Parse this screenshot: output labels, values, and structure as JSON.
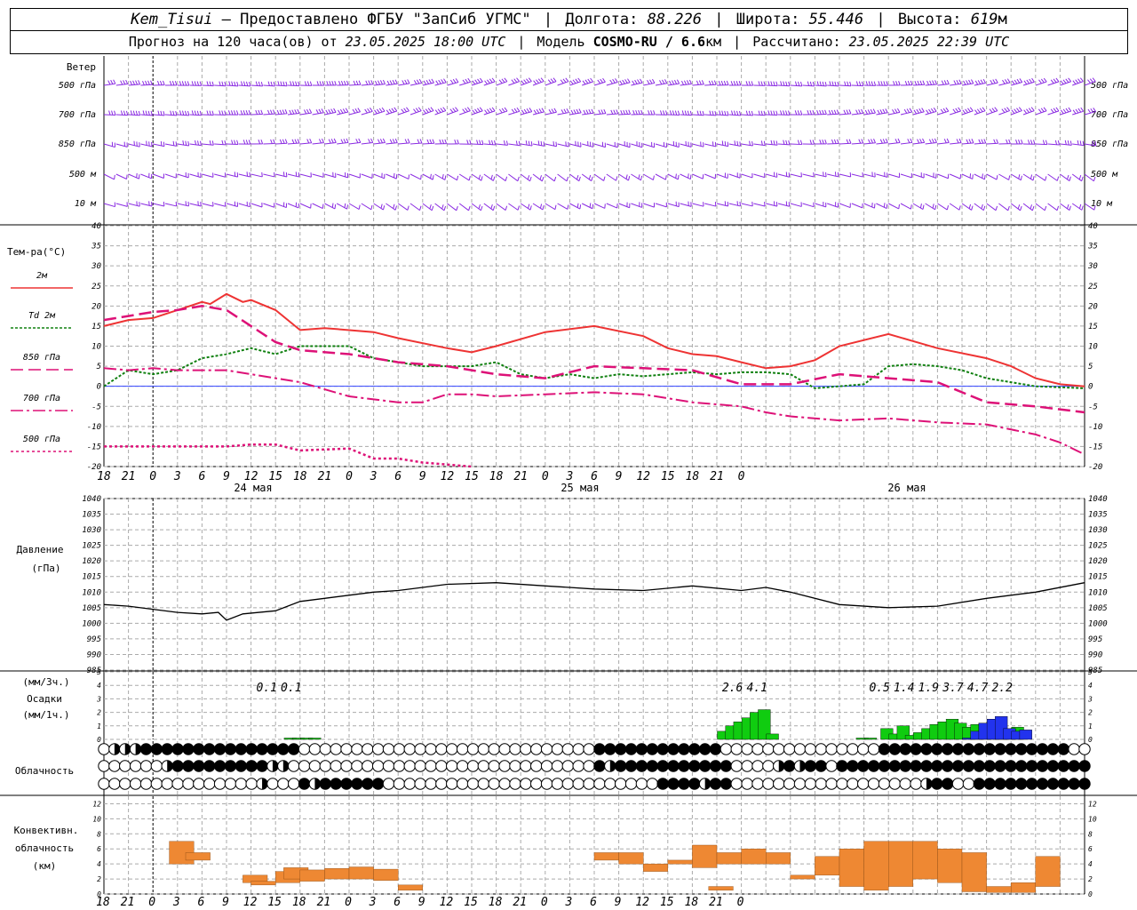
{
  "header": {
    "station": "Kem_Tisui",
    "provider": "— Предоставлено ФГБУ \"ЗапСиб УГМС\"",
    "lon_label": "Долгота:",
    "lon_value": "88.226",
    "lat_label": "Широта:",
    "lat_value": "55.446",
    "alt_label": "Высота:",
    "alt_value": "619",
    "alt_unit": "м",
    "forecast_prefix": "Прогноз на 120 часа(ов) от",
    "forecast_from": "23.05.2025 18:00 UTC",
    "model_label": "Модель",
    "model_name": "COSMO-RU / 6.6",
    "model_unit": "км",
    "computed_label": "Рассчитано:",
    "computed_at": "23.05.2025 22:39 UTC"
  },
  "labels": {
    "wind": "Ветер",
    "temp": "Тем-ра(°С)",
    "pressure": "Давление",
    "pressure_unit": "(гПа)",
    "precip_unit3": "(мм/3ч.)",
    "precip": "Осадки",
    "precip_unit1": "(мм/1ч.)",
    "cloud": "Облачность",
    "conv1": "Конвективн.",
    "conv2": "облачность",
    "conv3": "(км)",
    "days": [
      "24 мая",
      "25 мая",
      "26 мая"
    ]
  },
  "colors": {
    "t2m": "#ee3333",
    "td2m": "#108010",
    "t850": "#dd1177",
    "wind": "#8a2be2",
    "precip_rain": "#10cc10",
    "precip_snow": "#2233ee",
    "convective": "#ee8833",
    "zero_line": "#3344ff"
  },
  "chart_data": [
    {
      "type": "wind_barbs",
      "levels": [
        "500 гПа",
        "700 гПа",
        "850 гПа",
        "500 м",
        "10 м"
      ]
    },
    {
      "type": "line",
      "x_ticks": [
        "18",
        "21",
        "0",
        "3",
        "6",
        "9",
        "12",
        "15",
        "18",
        "21",
        "0",
        "3",
        "6",
        "9",
        "12",
        "15",
        "18",
        "21",
        "0",
        "3",
        "6",
        "9",
        "12",
        "15",
        "18",
        "21",
        "0"
      ],
      "ylim": [
        -20,
        40
      ],
      "y_ticks": [
        -20,
        -15,
        -10,
        -5,
        0,
        5,
        10,
        15,
        20,
        25,
        30,
        35,
        40
      ],
      "series": [
        {
          "name": "2м",
          "values": [
            [
              0,
              15
            ],
            [
              3,
              16.5
            ],
            [
              6,
              17
            ],
            [
              9,
              19
            ],
            [
              12,
              21
            ],
            [
              13,
              20.5
            ],
            [
              15,
              23
            ],
            [
              17,
              21
            ],
            [
              18,
              21.5
            ],
            [
              21,
              19
            ],
            [
              24,
              14
            ],
            [
              27,
              14.5
            ],
            [
              33,
              13.5
            ],
            [
              36,
              12
            ],
            [
              42,
              9.5
            ],
            [
              45,
              8.5
            ],
            [
              48,
              10
            ],
            [
              54,
              13.5
            ],
            [
              60,
              15
            ],
            [
              66,
              12.5
            ],
            [
              69,
              9.5
            ],
            [
              72,
              8
            ],
            [
              75,
              7.5
            ],
            [
              78,
              6
            ],
            [
              81,
              4.5
            ],
            [
              84,
              5
            ],
            [
              87,
              6.5
            ],
            [
              90,
              10
            ],
            [
              96,
              13
            ],
            [
              102,
              9.5
            ],
            [
              108,
              7
            ],
            [
              111,
              5
            ],
            [
              114,
              2
            ],
            [
              117,
              0.5
            ],
            [
              120,
              0
            ]
          ]
        },
        {
          "name": "Td 2м",
          "values": [
            [
              0,
              0
            ],
            [
              3,
              4
            ],
            [
              6,
              3
            ],
            [
              9,
              4
            ],
            [
              12,
              7
            ],
            [
              15,
              8
            ],
            [
              18,
              9.5
            ],
            [
              21,
              8
            ],
            [
              24,
              10
            ],
            [
              30,
              10
            ],
            [
              33,
              7
            ],
            [
              39,
              5
            ],
            [
              45,
              5
            ],
            [
              48,
              6
            ],
            [
              51,
              3
            ],
            [
              54,
              2
            ],
            [
              57,
              3
            ],
            [
              60,
              2
            ],
            [
              63,
              3
            ],
            [
              66,
              2.5
            ],
            [
              69,
              3
            ],
            [
              72,
              3.5
            ],
            [
              75,
              3
            ],
            [
              78,
              3.5
            ],
            [
              81,
              3.5
            ],
            [
              84,
              3
            ],
            [
              87,
              -0.5
            ],
            [
              93,
              0.5
            ],
            [
              96,
              5
            ],
            [
              99,
              5.5
            ],
            [
              102,
              5
            ],
            [
              105,
              4
            ],
            [
              108,
              2
            ],
            [
              111,
              1
            ],
            [
              114,
              0
            ],
            [
              120,
              -0.5
            ]
          ]
        },
        {
          "name": "850 гПа",
          "values": [
            [
              0,
              16.5
            ],
            [
              3,
              17.5
            ],
            [
              6,
              18.5
            ],
            [
              9,
              19
            ],
            [
              12,
              20
            ],
            [
              15,
              19
            ],
            [
              18,
              15
            ],
            [
              21,
              11
            ],
            [
              24,
              9
            ],
            [
              30,
              8
            ],
            [
              36,
              6
            ],
            [
              42,
              5
            ],
            [
              48,
              3
            ],
            [
              54,
              2
            ],
            [
              60,
              5
            ],
            [
              66,
              4.5
            ],
            [
              72,
              4
            ],
            [
              78,
              0.5
            ],
            [
              84,
              0.5
            ],
            [
              90,
              3
            ],
            [
              96,
              2
            ],
            [
              102,
              1
            ],
            [
              108,
              -4
            ],
            [
              114,
              -5
            ],
            [
              120,
              -6.5
            ]
          ]
        },
        {
          "name": "700 гПа",
          "values": [
            [
              0,
              4.5
            ],
            [
              3,
              4
            ],
            [
              6,
              4.5
            ],
            [
              9,
              4
            ],
            [
              12,
              4
            ],
            [
              15,
              4
            ],
            [
              18,
              3
            ],
            [
              21,
              2
            ],
            [
              24,
              1
            ],
            [
              30,
              -2.5
            ],
            [
              36,
              -4
            ],
            [
              39,
              -4
            ],
            [
              42,
              -2
            ],
            [
              45,
              -2
            ],
            [
              48,
              -2.5
            ],
            [
              54,
              -2
            ],
            [
              60,
              -1.5
            ],
            [
              66,
              -2
            ],
            [
              69,
              -3
            ],
            [
              72,
              -4
            ],
            [
              78,
              -5
            ],
            [
              81,
              -6.5
            ],
            [
              84,
              -7.5
            ],
            [
              90,
              -8.5
            ],
            [
              96,
              -8
            ],
            [
              102,
              -9
            ],
            [
              108,
              -9.5
            ],
            [
              114,
              -12
            ],
            [
              117,
              -14
            ],
            [
              120,
              -17
            ]
          ]
        },
        {
          "name": "500 гПа",
          "values": [
            [
              0,
              -15
            ],
            [
              3,
              -15
            ],
            [
              6,
              -15
            ],
            [
              9,
              -15
            ],
            [
              12,
              -15
            ],
            [
              15,
              -15
            ],
            [
              18,
              -14.5
            ],
            [
              21,
              -14.5
            ],
            [
              24,
              -16
            ],
            [
              30,
              -15.5
            ],
            [
              33,
              -18
            ],
            [
              36,
              -18
            ],
            [
              39,
              -19
            ],
            [
              42,
              -19.5
            ],
            [
              45,
              -20
            ]
          ]
        }
      ]
    },
    {
      "type": "line",
      "name": "Давление",
      "ylim": [
        985,
        1040
      ],
      "y_ticks": [
        985,
        990,
        995,
        1000,
        1005,
        1010,
        1015,
        1020,
        1025,
        1030,
        1035,
        1040
      ],
      "values": [
        [
          0,
          1006
        ],
        [
          3,
          1005.5
        ],
        [
          6,
          1004.5
        ],
        [
          9,
          1003.5
        ],
        [
          12,
          1003
        ],
        [
          14,
          1003.5
        ],
        [
          15,
          1001
        ],
        [
          17,
          1003
        ],
        [
          21,
          1004
        ],
        [
          24,
          1007
        ],
        [
          27,
          1008
        ],
        [
          33,
          1010
        ],
        [
          36,
          1010.5
        ],
        [
          42,
          1012.5
        ],
        [
          48,
          1013
        ],
        [
          54,
          1012
        ],
        [
          60,
          1011
        ],
        [
          66,
          1010.5
        ],
        [
          72,
          1012
        ],
        [
          78,
          1010.5
        ],
        [
          81,
          1011.5
        ],
        [
          84,
          1010
        ],
        [
          90,
          1006
        ],
        [
          96,
          1005
        ],
        [
          102,
          1005.5
        ],
        [
          108,
          1008
        ],
        [
          114,
          1010
        ],
        [
          120,
          1013
        ]
      ]
    },
    {
      "type": "bar",
      "name": "Осадки",
      "ylim": [
        0,
        5
      ],
      "totals_3h": [
        {
          "t": 21,
          "v": "0.1"
        },
        {
          "t": 24,
          "v": "0.1"
        },
        {
          "t": 78,
          "v": "2.6"
        },
        {
          "t": 81,
          "v": "4.1"
        },
        {
          "t": 96,
          "v": "0.5"
        },
        {
          "t": 99,
          "v": "1.4"
        },
        {
          "t": 102,
          "v": "1.9"
        },
        {
          "t": 105,
          "v": "3.7"
        },
        {
          "t": 108,
          "v": "4.7"
        },
        {
          "t": 111,
          "v": "2.2"
        }
      ],
      "rain": [
        [
          22,
          0.1
        ],
        [
          23,
          0.1
        ],
        [
          24,
          0.1
        ],
        [
          25,
          0.1
        ],
        [
          75,
          0.6
        ],
        [
          76,
          1
        ],
        [
          77,
          1.3
        ],
        [
          78,
          1.6
        ],
        [
          79,
          2
        ],
        [
          80,
          2.2
        ],
        [
          81,
          0.4
        ],
        [
          92,
          0.1
        ],
        [
          93,
          0.1
        ],
        [
          95,
          0.8
        ],
        [
          96,
          0.4
        ],
        [
          97,
          1
        ],
        [
          98,
          0.3
        ],
        [
          99,
          0.5
        ],
        [
          100,
          0.8
        ],
        [
          101,
          1.1
        ],
        [
          102,
          1.3
        ],
        [
          103,
          1.5
        ],
        [
          104,
          1.2
        ],
        [
          105,
          0.9
        ],
        [
          106,
          1.1
        ],
        [
          107,
          1.2
        ],
        [
          108,
          1.5
        ],
        [
          109,
          0.4
        ],
        [
          110,
          0.6
        ],
        [
          111,
          0.9
        ]
      ],
      "snow": [
        [
          105,
          0.1
        ],
        [
          106,
          0.6
        ],
        [
          107,
          1.2
        ],
        [
          108,
          1.5
        ],
        [
          109,
          1.7
        ],
        [
          110,
          0.8
        ],
        [
          111,
          0.6
        ],
        [
          112,
          0.7
        ]
      ]
    },
    {
      "type": "table",
      "name": "Облачность",
      "rows": [
        "0111222222222222222000000000000000000000000000022222222222200000000000000022222222222222222200",
        "0000001222222222110000000000000000000000000000021222222222220000121220222222222222222222222222",
        "0000000000000001000212222220000000000000000000000000022221220000000000000000001220022222222222"
      ]
    },
    {
      "type": "bar",
      "name": "Конвективн. облачность",
      "ylim": [
        0,
        13
      ],
      "y_ticks": [
        0,
        2,
        4,
        6,
        8,
        10,
        12
      ],
      "values": [
        [
          8,
          4,
          7
        ],
        [
          10,
          4.5,
          5.5
        ],
        [
          17,
          1.5,
          2.5
        ],
        [
          18,
          1.2,
          1.7
        ],
        [
          21,
          1.5,
          3
        ],
        [
          22,
          2,
          3.5
        ],
        [
          24,
          1.7,
          3.2
        ],
        [
          27,
          2,
          3.4
        ],
        [
          30,
          2,
          3.6
        ],
        [
          33,
          1.8,
          3.3
        ],
        [
          36,
          0.5,
          1.2
        ],
        [
          60,
          4.5,
          5.5
        ],
        [
          63,
          4,
          5.5
        ],
        [
          66,
          3,
          4
        ],
        [
          69,
          4,
          4.5
        ],
        [
          72,
          3.5,
          6.5
        ],
        [
          74,
          0.5,
          1
        ],
        [
          75,
          4,
          5.5
        ],
        [
          78,
          4,
          6
        ],
        [
          81,
          4,
          5.5
        ],
        [
          84,
          2,
          2.5
        ],
        [
          87,
          2.5,
          5
        ],
        [
          90,
          1,
          6
        ],
        [
          93,
          0.5,
          7
        ],
        [
          96,
          1,
          7
        ],
        [
          99,
          2,
          7
        ],
        [
          102,
          1.5,
          6
        ],
        [
          105,
          0.3,
          5.5
        ],
        [
          108,
          0.2,
          1
        ],
        [
          111,
          0.2,
          1.5
        ],
        [
          114,
          1,
          5
        ]
      ]
    }
  ]
}
